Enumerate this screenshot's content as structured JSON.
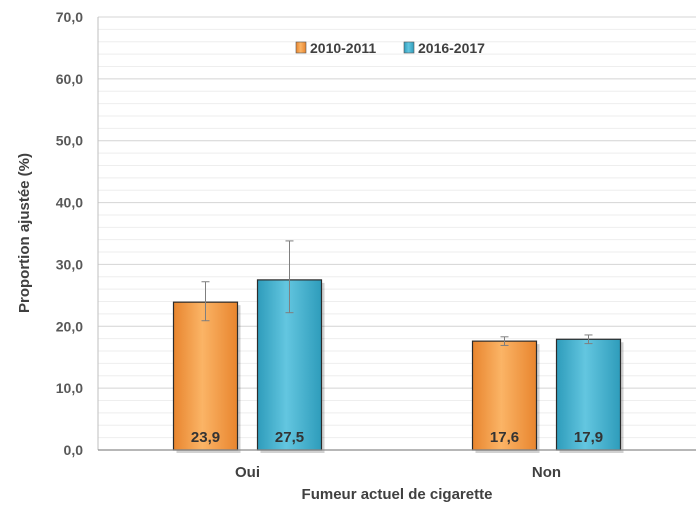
{
  "chart_data": {
    "type": "bar",
    "categories": [
      "Oui",
      "Non"
    ],
    "series": [
      {
        "name": "2010-2011",
        "values": [
          23.9,
          17.6
        ],
        "labels": [
          "23,9",
          "17,6"
        ],
        "error_low": [
          20.9,
          16.9
        ],
        "error_high": [
          27.2,
          18.3
        ],
        "color": "#F7A04A"
      },
      {
        "name": "2016-2017",
        "values": [
          27.5,
          17.9
        ],
        "labels": [
          "27,5",
          "17,9"
        ],
        "error_low": [
          22.2,
          17.2
        ],
        "error_high": [
          33.8,
          18.6
        ],
        "color": "#4FB8D4"
      }
    ],
    "xlabel": "Fumeur actuel de cigarette",
    "ylabel": "Proportion ajustée (%)",
    "ylim": [
      0,
      70
    ],
    "yticks": [
      "0,0",
      "10,0",
      "20,0",
      "30,0",
      "40,0",
      "50,0",
      "60,0",
      "70,0"
    ],
    "grid": true,
    "legend_position": "top-center"
  }
}
